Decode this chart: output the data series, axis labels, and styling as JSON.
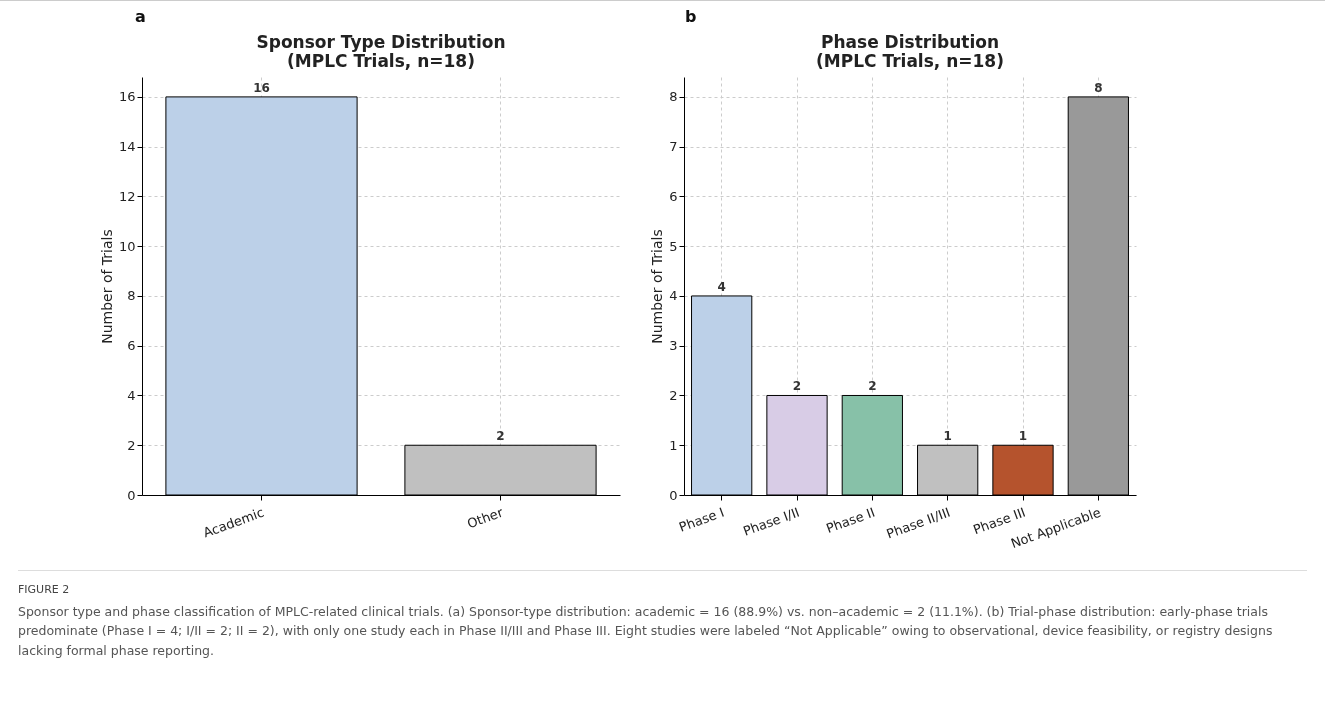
{
  "chart_data": [
    {
      "type": "bar",
      "title": "Sponsor Type Distribution\n(MPLC Trials, n=18)",
      "ylabel": "Number of Trials",
      "categories": [
        "Academic",
        "Other"
      ],
      "values": [
        16,
        2
      ],
      "colors": [
        "#bcd0e8",
        "#c0c0c0"
      ],
      "ylim": [
        0,
        16.8
      ],
      "yticks": [
        0,
        2,
        4,
        6,
        8,
        10,
        12,
        14,
        16
      ],
      "grid": true,
      "data_labels": true,
      "annotations": [
        "a"
      ]
    },
    {
      "type": "bar",
      "title": "Phase Distribution\n(MPLC Trials, n=18)",
      "ylabel": "Number of Trials",
      "categories": [
        "Phase I",
        "Phase I/II",
        "Phase II",
        "Phase II/III",
        "Phase III",
        "Not Applicable"
      ],
      "values": [
        4,
        2,
        2,
        1,
        1,
        8
      ],
      "colors": [
        "#bcd0e8",
        "#d8cce6",
        "#87c1a8",
        "#c0c0c0",
        "#b5532d",
        "#999999"
      ],
      "ylim": [
        0,
        8.4
      ],
      "yticks": [
        0,
        1,
        2,
        3,
        4,
        5,
        6,
        7,
        8
      ],
      "grid": true,
      "data_labels": true,
      "annotations": [
        "b",
        "FIGURE 2",
        "Sponsor type and phase classification of MPLC-related clinical trials. (a) Sponsor-type distribution: academic = 16 (88.9%) vs. non–academic = 2 (11.1%). (b) Trial-phase distribution: early-phase trials predominate (Phase I = 4; I/II = 2; II = 2), with only one study each in Phase II/III and Phase III. Eight studies were labeled “Not Applicable” owing to observational, device feasibility, or registry designs lacking formal phase reporting."
      ]
    }
  ]
}
